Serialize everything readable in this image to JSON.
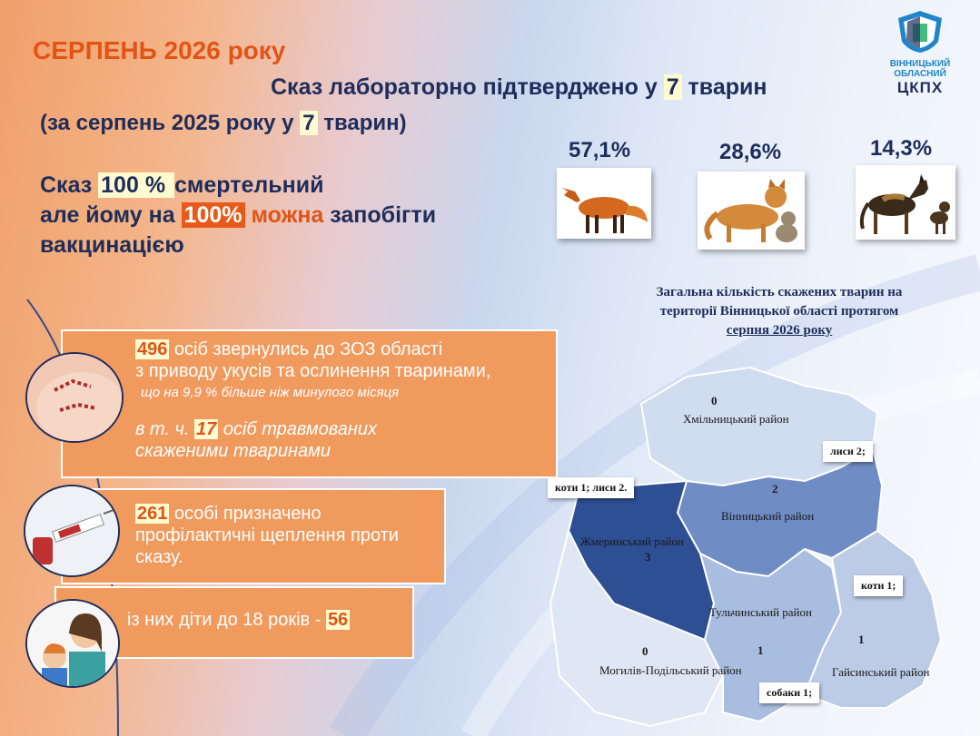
{
  "header": {
    "title": "СЕРПЕНЬ 2026 року",
    "subtitle_pre": "Сказ лабораторно підтверджено у ",
    "subtitle_num": "7",
    "subtitle_post": " тварин",
    "prev_pre": "(за серпень 2025 року у ",
    "prev_num": "7",
    "prev_post": " тварин)"
  },
  "statement": {
    "l1_pre": "Сказ ",
    "l1_hl": "100 % ",
    "l1_post": " смертельний",
    "l2_pre": "але йому на ",
    "l2_hl": "100%",
    "l2_mid": " можна",
    "l2_post": " запобігти",
    "l3": "вакцинацією"
  },
  "logo": {
    "line1": "ВІННИЦЬКИЙ",
    "line2": "ОБЛАСНИЙ",
    "line3": "ЦКПХ"
  },
  "animals": [
    {
      "pct": "57,1%",
      "icon": "fox-icon"
    },
    {
      "pct": "28,6%",
      "icon": "cat-icon"
    },
    {
      "pct": "14,3%",
      "icon": "dog-icon"
    }
  ],
  "boxes": {
    "b1_num": "496",
    "b1_t1": " осіб звернулись до ЗОЗ області",
    "b1_t2": "з приводу укусів та ослинення тваринами,",
    "b1_t3": "що на 9,9 % більше ніж минулого місяця",
    "b1_t4_pre": "в т. ч. ",
    "b1_t4_num": "17",
    "b1_t4_post": " осіб травмованих",
    "b1_t5": "скаженими тваринами",
    "b2_num": "261",
    "b2_t1": " особі призначено",
    "b2_t2": "профілактичні щеплення проти",
    "b2_t3": "сказу.",
    "b3_t": "із них діти до 18 років - ",
    "b3_num": "56"
  },
  "map": {
    "caption1": "Загальна кількість скажених тварин на",
    "caption2": "території Вінницької області протягом",
    "caption3": "серпня 2026 року",
    "districts": [
      {
        "name": "Хмільницький район",
        "count": "0"
      },
      {
        "name": "Вінницький район",
        "count": "2"
      },
      {
        "name": "Жмеринський район",
        "count": "3"
      },
      {
        "name": "Тульчинський район",
        "count": "1"
      },
      {
        "name": "Могилів-Подільський район",
        "count": "0"
      },
      {
        "name": "Гайсинський район",
        "count": "1"
      }
    ],
    "callouts": [
      "лиси 2;",
      "коти 1; лиси 2.",
      "коти 1;",
      "собаки 1;"
    ]
  }
}
